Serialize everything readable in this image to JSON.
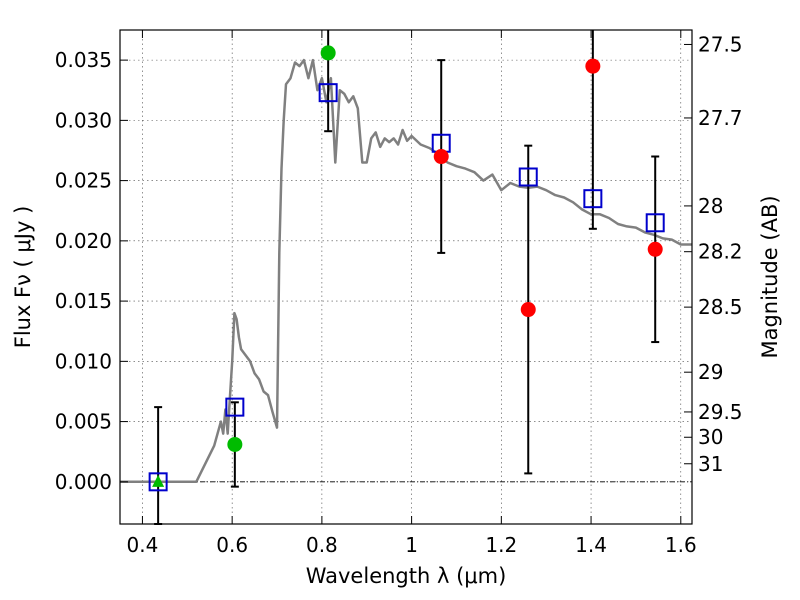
{
  "chart_data": {
    "type": "scatter",
    "xlabel": "Wavelength  λ (μm)",
    "ylabel": "Flux  Fν  ( μJy )",
    "ylabel_right": "Magnitude (AB)",
    "xlim": [
      0.35,
      1.625
    ],
    "ylim": [
      -0.0035,
      0.0375
    ],
    "x_ticks": [
      0.4,
      0.6,
      0.8,
      1.0,
      1.2,
      1.4,
      1.6
    ],
    "x_tick_labels": [
      "0.4",
      "0.6",
      "0.8",
      "1",
      "1.2",
      "1.4",
      "1.6"
    ],
    "y_ticks": [
      0.0,
      0.005,
      0.01,
      0.015,
      0.02,
      0.025,
      0.03,
      0.035
    ],
    "y_tick_labels": [
      "0.000",
      "0.005",
      "0.010",
      "0.015",
      "0.020",
      "0.025",
      "0.030",
      "0.035"
    ],
    "mag_ticks": [
      {
        "label": "27.5",
        "flux": 0.0363
      },
      {
        "label": "27.7",
        "flux": 0.0302
      },
      {
        "label": "28",
        "flux": 0.0229
      },
      {
        "label": "28.2",
        "flux": 0.0191
      },
      {
        "label": "28.5",
        "flux": 0.0145
      },
      {
        "label": "29",
        "flux": 0.0091
      },
      {
        "label": "29.5",
        "flux": 0.0058
      },
      {
        "label": "30",
        "flux": 0.0037
      },
      {
        "label": "31",
        "flux": 0.0015
      }
    ],
    "grid": true,
    "zero_line": true,
    "model_spectrum": {
      "color": "#808080",
      "x": [
        0.35,
        0.52,
        0.56,
        0.575,
        0.58,
        0.585,
        0.59,
        0.595,
        0.6,
        0.605,
        0.61,
        0.615,
        0.62,
        0.63,
        0.64,
        0.65,
        0.66,
        0.67,
        0.68,
        0.69,
        0.7,
        0.705,
        0.71,
        0.715,
        0.72,
        0.73,
        0.74,
        0.75,
        0.76,
        0.77,
        0.78,
        0.79,
        0.8,
        0.81,
        0.82,
        0.83,
        0.84,
        0.85,
        0.86,
        0.87,
        0.88,
        0.89,
        0.9,
        0.91,
        0.92,
        0.93,
        0.94,
        0.95,
        0.96,
        0.97,
        0.98,
        0.99,
        1.0,
        1.02,
        1.04,
        1.06,
        1.08,
        1.1,
        1.12,
        1.14,
        1.16,
        1.18,
        1.2,
        1.22,
        1.24,
        1.26,
        1.28,
        1.3,
        1.32,
        1.34,
        1.36,
        1.38,
        1.4,
        1.42,
        1.44,
        1.46,
        1.48,
        1.5,
        1.52,
        1.54,
        1.56,
        1.58,
        1.6,
        1.625
      ],
      "y": [
        0.0,
        0.0,
        0.003,
        0.005,
        0.004,
        0.006,
        0.004,
        0.007,
        0.01,
        0.014,
        0.0135,
        0.012,
        0.011,
        0.0105,
        0.01,
        0.009,
        0.0085,
        0.0075,
        0.0072,
        0.0058,
        0.0045,
        0.019,
        0.026,
        0.03,
        0.033,
        0.0335,
        0.0348,
        0.0345,
        0.035,
        0.0335,
        0.035,
        0.0325,
        0.0335,
        0.0315,
        0.0335,
        0.0265,
        0.0325,
        0.0322,
        0.0315,
        0.032,
        0.031,
        0.0265,
        0.0265,
        0.0285,
        0.029,
        0.0278,
        0.0285,
        0.0282,
        0.0285,
        0.028,
        0.0292,
        0.0283,
        0.0287,
        0.028,
        0.0277,
        0.0272,
        0.0265,
        0.0262,
        0.026,
        0.0257,
        0.025,
        0.0255,
        0.0242,
        0.0248,
        0.0245,
        0.0244,
        0.0245,
        0.0242,
        0.0238,
        0.0236,
        0.0232,
        0.0226,
        0.0222,
        0.0222,
        0.0219,
        0.0214,
        0.0212,
        0.0211,
        0.0207,
        0.0205,
        0.0202,
        0.0201,
        0.0197,
        0.0197
      ]
    },
    "series": [
      {
        "marker": "square",
        "color": "#0000cc",
        "points": [
          {
            "x": 0.435,
            "y": 0.0
          },
          {
            "x": 0.606,
            "y": 0.0062
          },
          {
            "x": 0.814,
            "y": 0.0323
          },
          {
            "x": 1.066,
            "y": 0.0281
          },
          {
            "x": 1.26,
            "y": 0.0253
          },
          {
            "x": 1.404,
            "y": 0.0235
          },
          {
            "x": 1.543,
            "y": 0.0215
          }
        ]
      },
      {
        "marker": "circle",
        "color": "#ff0000",
        "points": [
          {
            "x": 1.066,
            "y": 0.027,
            "err": 0.008
          },
          {
            "x": 1.26,
            "y": 0.0143,
            "err": 0.0136
          },
          {
            "x": 1.404,
            "y": 0.0345,
            "err": 0.0135
          },
          {
            "x": 1.543,
            "y": 0.0193,
            "err": 0.0077
          }
        ]
      },
      {
        "marker": "circle",
        "color": "#00bb00",
        "points": [
          {
            "x": 0.606,
            "y": 0.0031,
            "err": 0.0035
          },
          {
            "x": 0.814,
            "y": 0.0356,
            "err": 0.0065
          }
        ]
      },
      {
        "marker": "triangle",
        "color": "#00bb00",
        "points": [
          {
            "x": 0.435,
            "y": 0.0,
            "err": 0.0062
          }
        ]
      }
    ]
  }
}
